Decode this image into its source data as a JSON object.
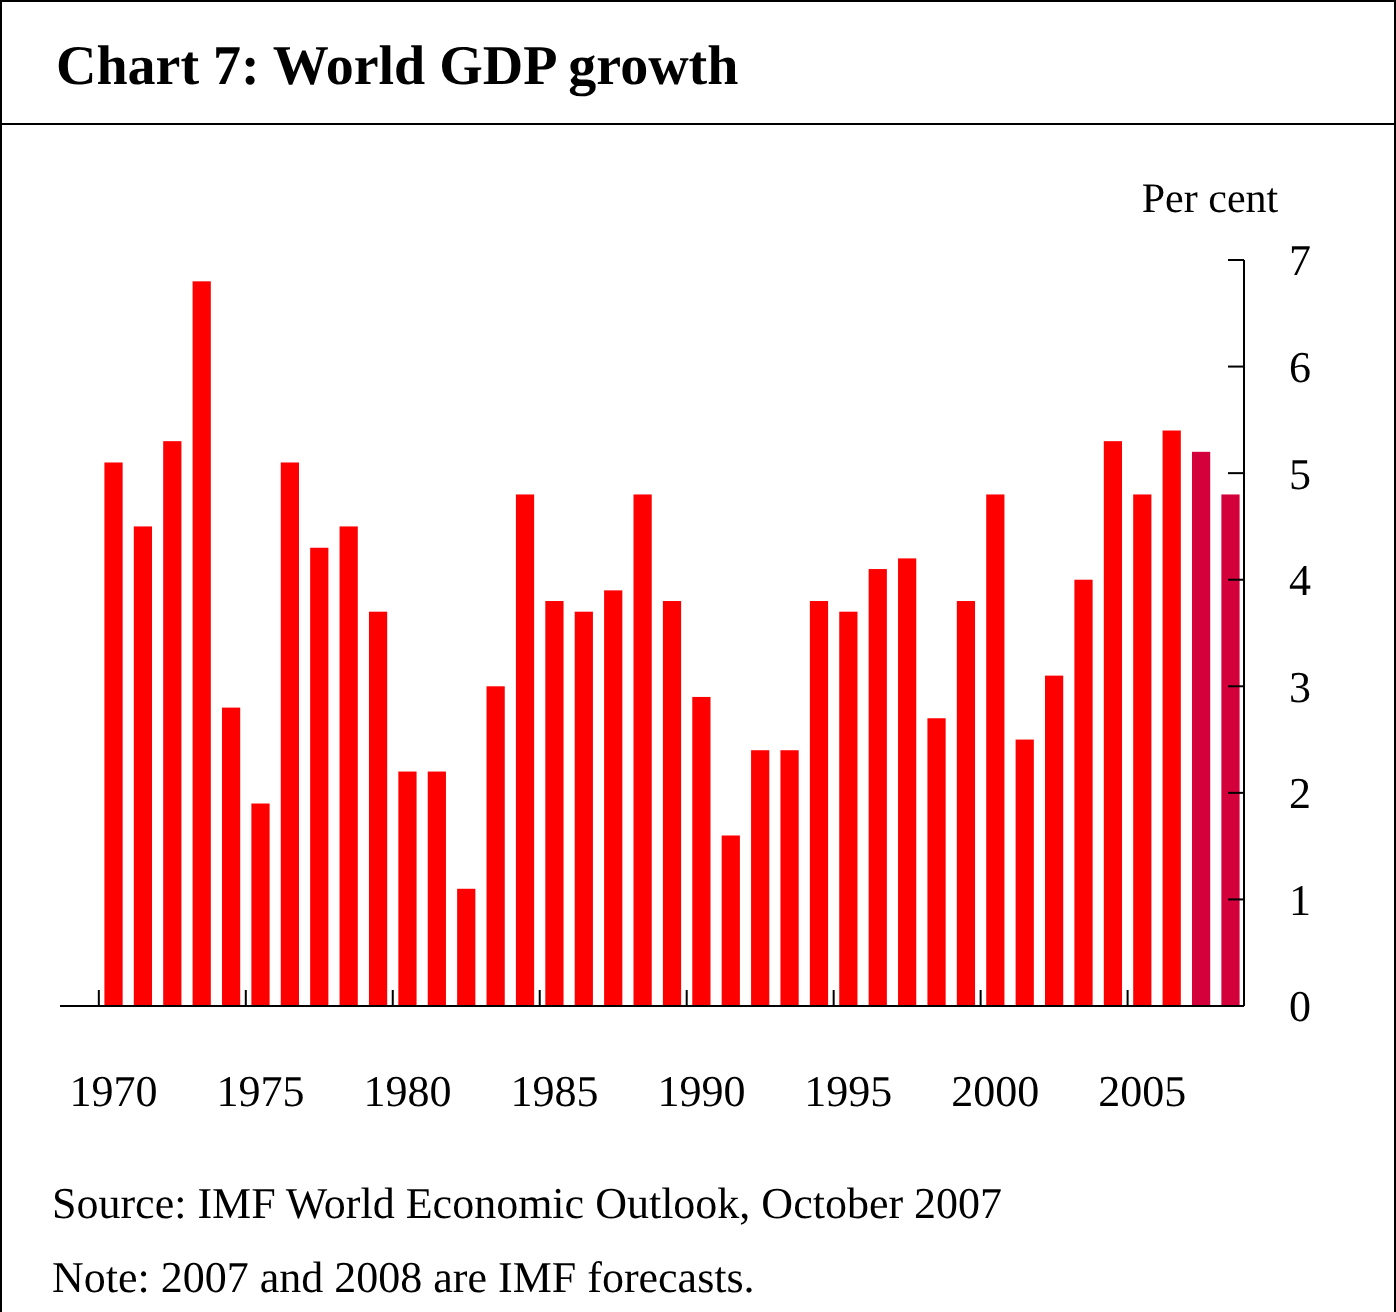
{
  "chart_data": {
    "type": "bar",
    "title": "Chart 7: World GDP growth",
    "ylabel": "Per cent",
    "categories": [
      "1970",
      null,
      null,
      null,
      null,
      "1975",
      null,
      null,
      null,
      null,
      "1980",
      null,
      null,
      null,
      null,
      "1985",
      null,
      null,
      null,
      null,
      "1990",
      null,
      null,
      null,
      null,
      "1995",
      null,
      null,
      null,
      null,
      "2000",
      null,
      null,
      null,
      null,
      "2005",
      null,
      null,
      null
    ],
    "values": [
      5.1,
      4.5,
      5.3,
      6.8,
      2.8,
      1.9,
      5.1,
      4.3,
      4.5,
      3.7,
      2.2,
      2.2,
      1.1,
      3.0,
      4.8,
      3.8,
      3.7,
      3.9,
      4.8,
      3.8,
      2.9,
      1.6,
      2.4,
      2.4,
      3.8,
      3.7,
      4.1,
      4.2,
      2.7,
      3.8,
      4.8,
      2.5,
      3.1,
      4.0,
      5.3,
      4.8,
      5.4,
      5.2,
      4.8
    ],
    "colors": [
      "#ff0000",
      "#ff0000",
      "#ff0000",
      "#ff0000",
      "#ff0000",
      "#ff0000",
      "#ff0000",
      "#ff0000",
      "#ff0000",
      "#ff0000",
      "#ff0000",
      "#ff0000",
      "#ff0000",
      "#ff0000",
      "#ff0000",
      "#ff0000",
      "#ff0000",
      "#ff0000",
      "#ff0000",
      "#ff0000",
      "#ff0000",
      "#ff0000",
      "#ff0000",
      "#ff0000",
      "#ff0000",
      "#ff0000",
      "#ff0000",
      "#ff0000",
      "#ff0000",
      "#ff0000",
      "#ff0000",
      "#ff0000",
      "#ff0000",
      "#ff0000",
      "#ff0000",
      "#ff0000",
      "#ff0000",
      "#d4003c",
      "#d4003c"
    ],
    "ylim": [
      0,
      7
    ],
    "yticks": [
      0,
      1,
      2,
      3,
      4,
      5,
      6,
      7
    ],
    "grid": false,
    "annotations": [
      "Source: IMF World Economic Outlook, October 2007",
      "Note: 2007 and 2008 are IMF forecasts."
    ]
  }
}
